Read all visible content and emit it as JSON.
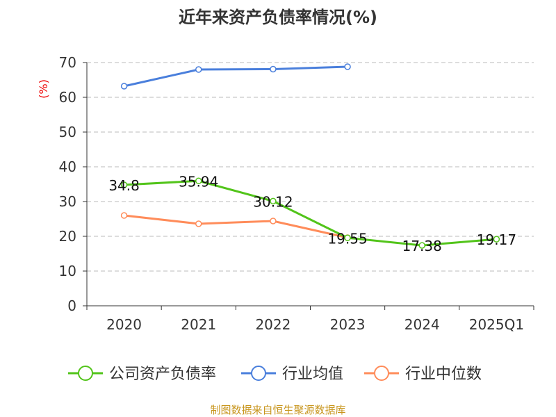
{
  "chart_data": {
    "type": "line",
    "title": "近年来资产负债率情况(%)",
    "ylabel": "(%)",
    "xlabel": "",
    "ylim": [
      0,
      70
    ],
    "yticks": [
      0,
      10,
      20,
      30,
      40,
      50,
      60,
      70
    ],
    "grid": true,
    "legend_position": "bottom",
    "categories": [
      "2020",
      "2021",
      "2022",
      "2023",
      "2024",
      "2025Q1"
    ],
    "series": [
      {
        "name": "公司资产负债率",
        "color": "#52c41a",
        "values": [
          34.8,
          35.94,
          30.12,
          19.55,
          17.38,
          19.17
        ],
        "labels": [
          "34.8",
          "35.94",
          "30.12",
          "19.55",
          "17.38",
          "19.17"
        ]
      },
      {
        "name": "行业均值",
        "color": "#4a7fdc",
        "values": [
          63.2,
          68.0,
          68.1,
          68.8,
          null,
          null
        ]
      },
      {
        "name": "行业中位数",
        "color": "#ff8c5a",
        "values": [
          26.0,
          23.6,
          24.4,
          19.6,
          null,
          null
        ]
      }
    ],
    "source": "制图数据来自恒生聚源数据库"
  }
}
